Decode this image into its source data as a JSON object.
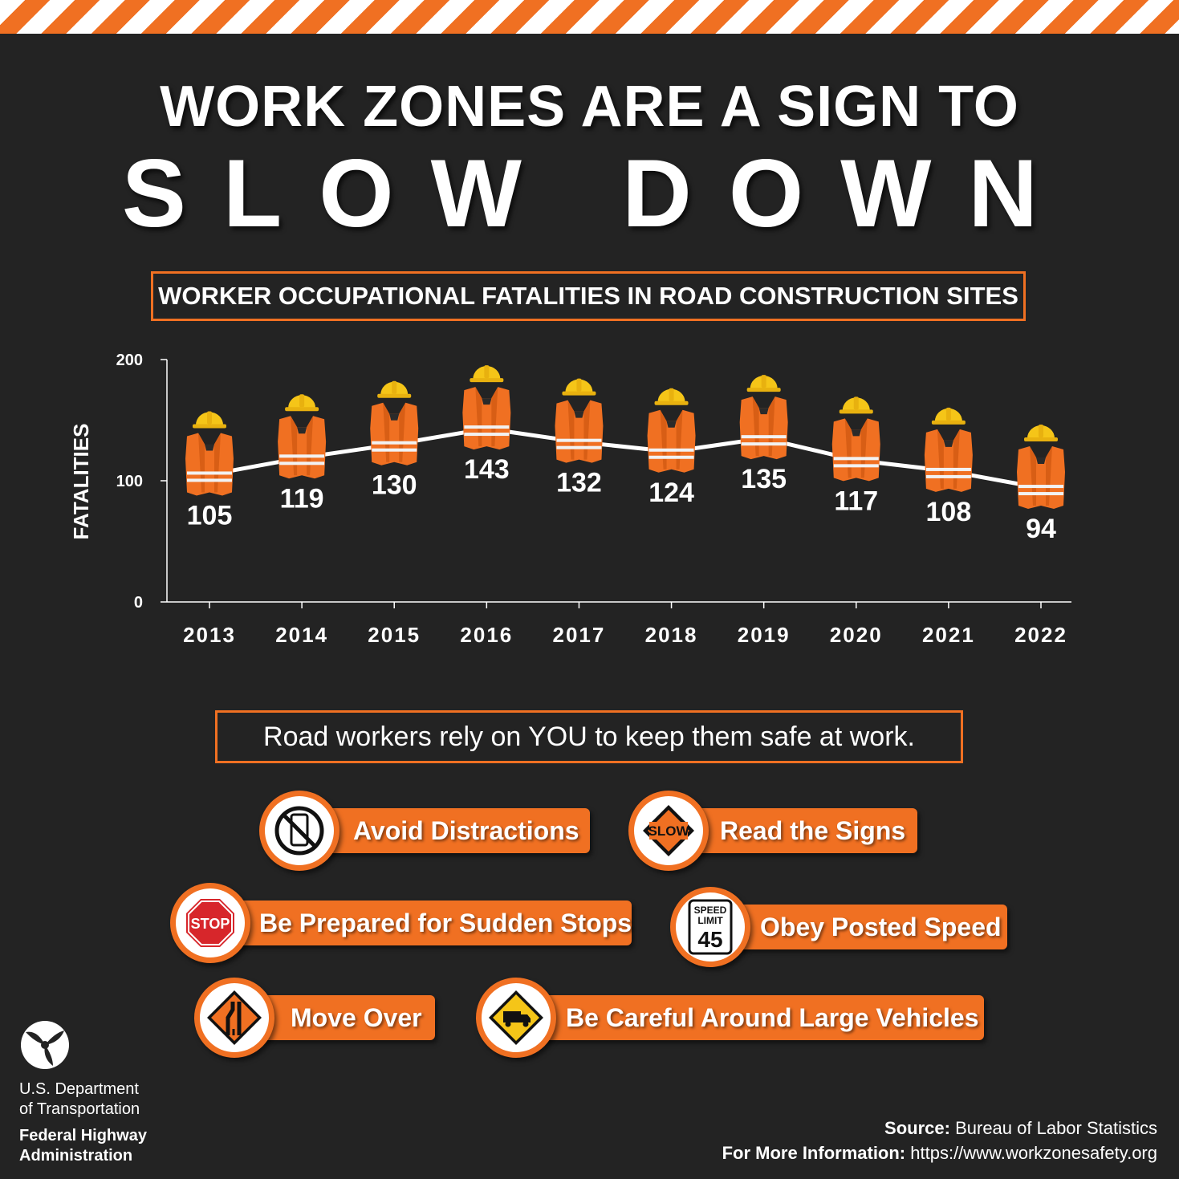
{
  "header": {
    "title_line1": "WORK ZONES ARE A SIGN TO",
    "title_line2": "SLOW DOWN"
  },
  "chart_data": {
    "type": "line",
    "title": "WORKER OCCUPATIONAL FATALITIES IN ROAD CONSTRUCTION SITES",
    "xlabel": "",
    "ylabel": "FATALITIES",
    "categories": [
      "2013",
      "2014",
      "2015",
      "2016",
      "2017",
      "2018",
      "2019",
      "2020",
      "2021",
      "2022"
    ],
    "values": [
      105,
      119,
      130,
      143,
      132,
      124,
      135,
      117,
      108,
      94
    ],
    "ylim": [
      0,
      200
    ],
    "yticks": [
      0,
      100,
      200
    ],
    "grid": false,
    "markers": "safety vest and hard hat",
    "colors": {
      "line": "#ffffff",
      "vest": "#f07022",
      "helmet": "#f5c518",
      "axis": "#ffffff"
    }
  },
  "message": "Road workers rely on YOU to keep them safe at work.",
  "tips": [
    {
      "label": "Avoid Distractions",
      "icon": "no-phone-icon"
    },
    {
      "label": "Read the Signs",
      "icon": "slow-sign-icon"
    },
    {
      "label": "Be Prepared for Sudden Stops",
      "icon": "stop-sign-icon"
    },
    {
      "label": "Obey Posted Speed",
      "icon": "speed-limit-sign-icon",
      "sign_top": "SPEED",
      "sign_mid": "LIMIT",
      "sign_num": "45"
    },
    {
      "label": "Move Over",
      "icon": "lane-shift-sign-icon"
    },
    {
      "label": "Be Careful Around Large Vehicles",
      "icon": "truck-sign-icon"
    }
  ],
  "signs": {
    "slow": "SLOW",
    "stop": "STOP"
  },
  "footer": {
    "dot_line1": "U.S. Department",
    "dot_line2": "of Transportation",
    "fhwa_line1": "Federal Highway",
    "fhwa_line2": "Administration",
    "source_label": "Source:",
    "source_value": "Bureau of Labor Statistics",
    "info_label": "For More Information:",
    "info_value": "https://www.workzonesafety.org"
  },
  "colors": {
    "accent": "#f07022",
    "background": "#232323",
    "text": "#ffffff"
  }
}
